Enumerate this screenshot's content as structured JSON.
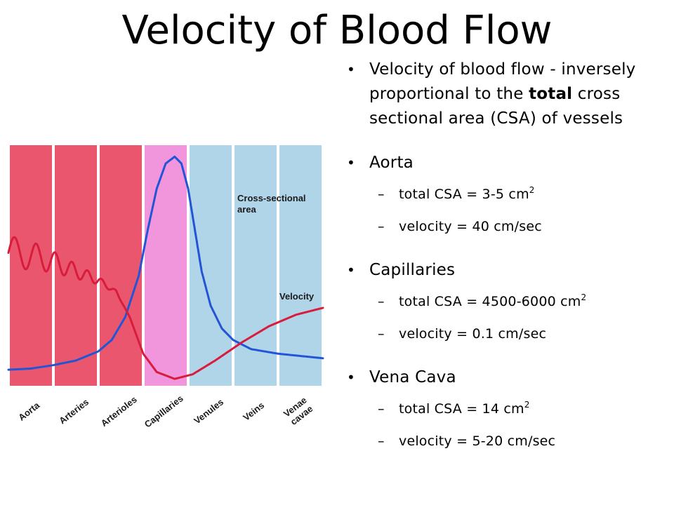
{
  "title": "Velocity of Blood Flow",
  "bullets": {
    "intro": {
      "part1": "Velocity of blood flow - inversely proportional to the ",
      "emphasis": "total",
      "part2": " cross sectional area (CSA) of vessels"
    },
    "aorta": {
      "heading": "Aorta",
      "csa_prefix": "total CSA = 3-5 cm",
      "csa_exp": "2",
      "velocity": "velocity = 40 cm/sec"
    },
    "capillaries": {
      "heading": "Capillaries",
      "csa_prefix": "total CSA = 4500-6000 cm",
      "csa_exp": "2",
      "velocity": "velocity = 0.1 cm/sec"
    },
    "vena_cava": {
      "heading": "Vena Cava",
      "csa_prefix": "total CSA = 14 cm",
      "csa_exp": "2",
      "velocity": "velocity = 5-20 cm/sec"
    },
    "bullet_glyph": "•",
    "dash_glyph": "–"
  },
  "chart_data": {
    "type": "line",
    "title": "",
    "xlabel": "",
    "ylabel": "",
    "categories": [
      "Aorta",
      "Arteries",
      "Arterioles",
      "Capillaries",
      "Venules",
      "Veins",
      "Venae cavae"
    ],
    "band_colors": [
      "#e8445e",
      "#e8445e",
      "#e8445e",
      "#ef8ad8",
      "#a7cfe6",
      "#a7cfe6",
      "#a7cfe6"
    ],
    "series": [
      {
        "name": "Cross-sectional area",
        "color": "#2255d6",
        "pulsatile": false,
        "points": [
          [
            0,
            0.07
          ],
          [
            0.5,
            0.075
          ],
          [
            1,
            0.09
          ],
          [
            1.5,
            0.11
          ],
          [
            2,
            0.15
          ],
          [
            2.3,
            0.2
          ],
          [
            2.6,
            0.3
          ],
          [
            2.9,
            0.48
          ],
          [
            3.1,
            0.68
          ],
          [
            3.3,
            0.86
          ],
          [
            3.5,
            0.97
          ],
          [
            3.7,
            1.0
          ],
          [
            3.85,
            0.97
          ],
          [
            4.0,
            0.86
          ],
          [
            4.15,
            0.68
          ],
          [
            4.3,
            0.5
          ],
          [
            4.5,
            0.35
          ],
          [
            4.75,
            0.25
          ],
          [
            5.0,
            0.2
          ],
          [
            5.4,
            0.16
          ],
          [
            6.0,
            0.14
          ],
          [
            7.0,
            0.12
          ]
        ]
      },
      {
        "name": "Velocity",
        "color": "#d81c3c",
        "pulsatile": true,
        "points": [
          [
            0,
            0.58
          ],
          [
            0.5,
            0.57
          ],
          [
            1,
            0.54
          ],
          [
            1.5,
            0.5
          ],
          [
            2,
            0.46
          ],
          [
            2.4,
            0.41
          ],
          [
            2.7,
            0.3
          ],
          [
            3.0,
            0.14
          ],
          [
            3.3,
            0.06
          ],
          [
            3.7,
            0.03
          ],
          [
            4.1,
            0.05
          ],
          [
            4.6,
            0.11
          ],
          [
            5.2,
            0.19
          ],
          [
            5.8,
            0.26
          ],
          [
            6.4,
            0.31
          ],
          [
            7.0,
            0.34
          ]
        ]
      }
    ],
    "annotations": [
      {
        "text": "Cross-sectional area",
        "target_series": "Cross-sectional area"
      },
      {
        "text": "Velocity",
        "target_series": "Velocity"
      }
    ],
    "xlim": [
      0,
      7
    ],
    "ylim": [
      0,
      1.05
    ],
    "grid": false,
    "legend": "none"
  }
}
